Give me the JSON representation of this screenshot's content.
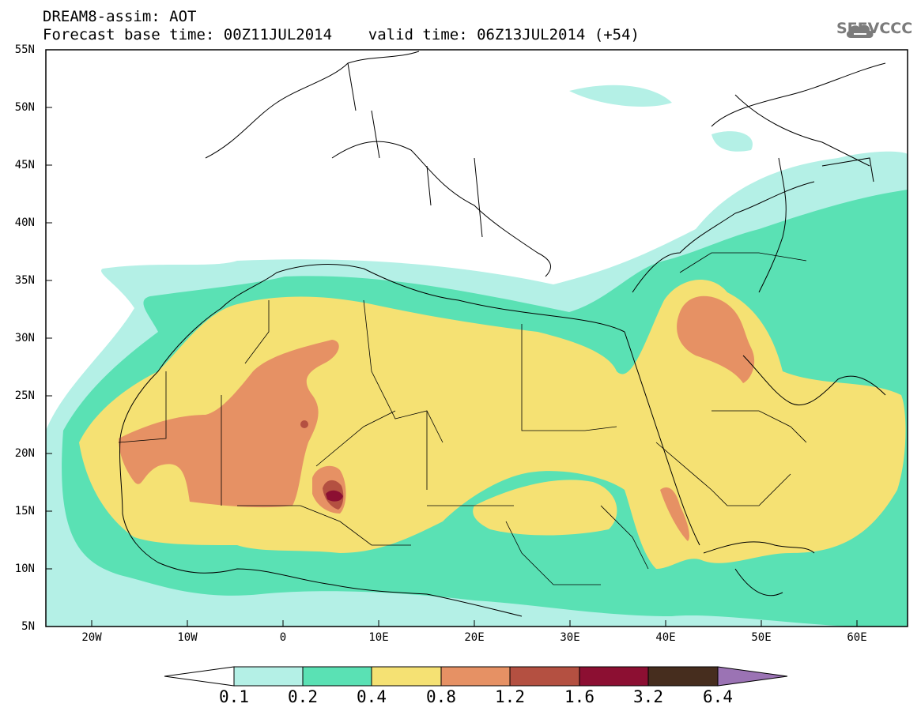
{
  "header": {
    "title_line1": "DREAM8-assim: AOT",
    "title_line2": "Forecast base time: 00Z11JUL2014    valid time: 06Z13JUL2014 (+54)",
    "logo_text": "SEEVCCC"
  },
  "map": {
    "lat_labels": [
      "55N",
      "50N",
      "45N",
      "40N",
      "35N",
      "30N",
      "25N",
      "20N",
      "15N",
      "10N",
      "5N"
    ],
    "lon_labels": [
      "20W",
      "10W",
      "0",
      "10E",
      "20E",
      "30E",
      "40E",
      "50E",
      "60E"
    ]
  },
  "legend": {
    "colors": [
      "#ffffff",
      "#b4f0e6",
      "#5ae1b4",
      "#f5e173",
      "#e69164",
      "#b45041",
      "#8c0f32",
      "#462d1e",
      "#9b73b4"
    ],
    "labels": [
      "0.1",
      "0.2",
      "0.4",
      "0.8",
      "1.2",
      "1.6",
      "3.2",
      "6.4"
    ]
  }
}
